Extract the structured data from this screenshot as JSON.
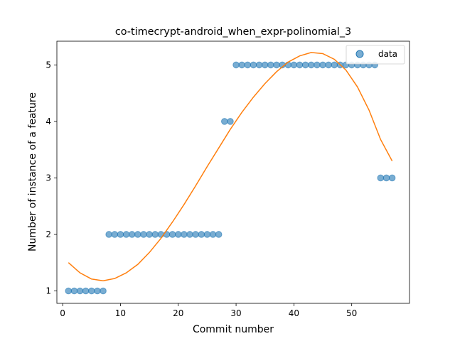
{
  "chart_data": {
    "type": "scatter",
    "title": "co-timecrypt-android_when_expr-polinomial_3",
    "xlabel": "Commit number",
    "ylabel": "Number of instance of a feature",
    "xlim": [
      -1,
      60
    ],
    "ylim": [
      0.78,
      5.42
    ],
    "xticks": [
      0,
      10,
      20,
      30,
      40,
      50
    ],
    "yticks": [
      1,
      2,
      3,
      4,
      5
    ],
    "grid": false,
    "legend": {
      "placement": "top-right",
      "entries": [
        "data"
      ]
    },
    "colors": {
      "points": "#1f77b4",
      "fit": "#ff7f0e"
    },
    "series": [
      {
        "name": "data",
        "kind": "scatter",
        "x": [
          1,
          2,
          3,
          4,
          5,
          6,
          7,
          8,
          9,
          10,
          11,
          12,
          13,
          14,
          15,
          16,
          17,
          18,
          19,
          20,
          21,
          22,
          23,
          24,
          25,
          26,
          27,
          28,
          29,
          30,
          31,
          32,
          33,
          34,
          35,
          36,
          37,
          38,
          39,
          40,
          41,
          42,
          43,
          44,
          45,
          46,
          47,
          48,
          49,
          50,
          51,
          52,
          53,
          54,
          55,
          56,
          57
        ],
        "y": [
          1,
          1,
          1,
          1,
          1,
          1,
          1,
          2,
          2,
          2,
          2,
          2,
          2,
          2,
          2,
          2,
          2,
          2,
          2,
          2,
          2,
          2,
          2,
          2,
          2,
          2,
          2,
          4,
          4,
          5,
          5,
          5,
          5,
          5,
          5,
          5,
          5,
          5,
          5,
          5,
          5,
          5,
          5,
          5,
          5,
          5,
          5,
          5,
          5,
          5,
          5,
          5,
          5,
          5,
          3,
          3,
          3
        ]
      },
      {
        "kind": "line",
        "x": [
          1,
          3,
          5,
          7,
          9,
          11,
          13,
          15,
          17,
          19,
          21,
          23,
          25,
          27,
          29,
          31,
          33,
          35,
          37,
          39,
          41,
          43,
          45,
          47,
          49,
          51,
          53,
          55,
          57
        ],
        "y": [
          1.5,
          1.32,
          1.21,
          1.18,
          1.22,
          1.32,
          1.47,
          1.68,
          1.93,
          2.22,
          2.53,
          2.86,
          3.2,
          3.53,
          3.86,
          4.16,
          4.43,
          4.67,
          4.88,
          5.05,
          5.16,
          5.22,
          5.2,
          5.1,
          4.91,
          4.61,
          4.2,
          3.68,
          3.3
        ]
      }
    ]
  }
}
